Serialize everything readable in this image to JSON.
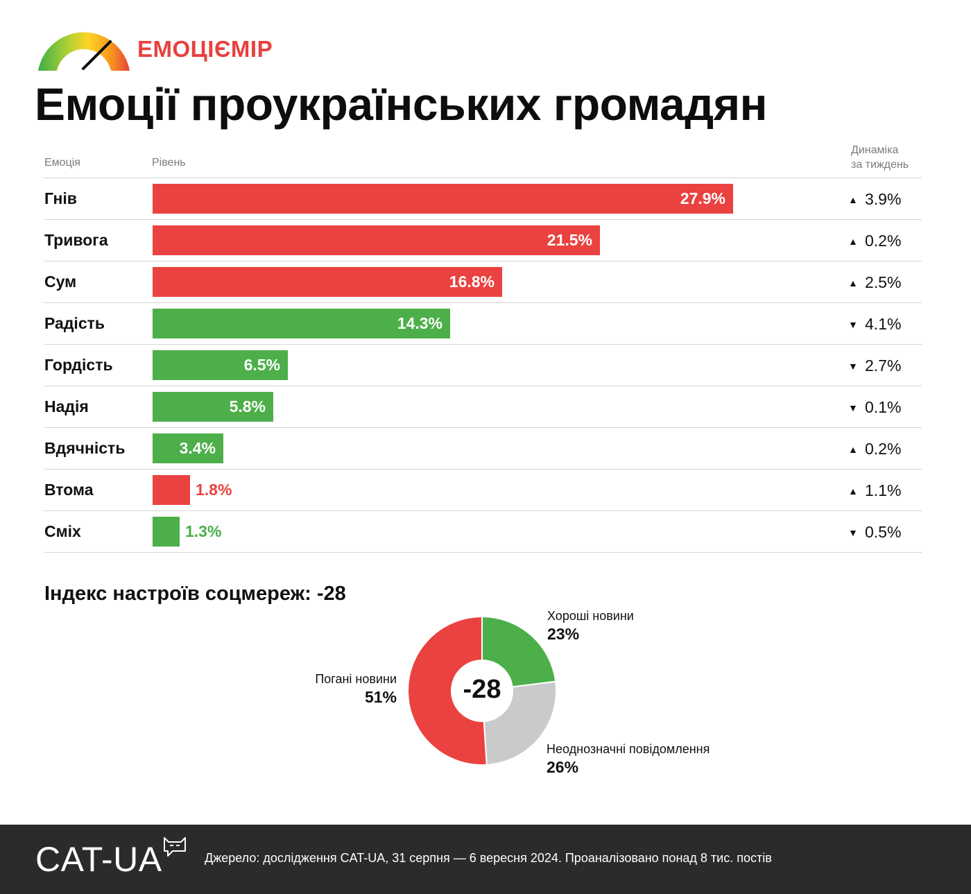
{
  "brand": "ЕМОЦІЄМІР",
  "title": "Емоції проукраїнських громадян",
  "headers": {
    "emotion": "Емоція",
    "level": "Рівень",
    "dynamics_line1": "Динаміка",
    "dynamics_line2": "за тиждень"
  },
  "colors": {
    "negative": "#ea4240",
    "positive": "#4daf4a",
    "ambiguous": "#cacaca"
  },
  "chart_data": [
    {
      "type": "bar",
      "orientation": "horizontal",
      "rows": [
        {
          "label": "Гнів",
          "value": 27.9,
          "value_label": "27.9%",
          "sentiment": "negative",
          "change_dir": "up",
          "change_label": "3.9%"
        },
        {
          "label": "Тривога",
          "value": 21.5,
          "value_label": "21.5%",
          "sentiment": "negative",
          "change_dir": "up",
          "change_label": "0.2%"
        },
        {
          "label": "Сум",
          "value": 16.8,
          "value_label": "16.8%",
          "sentiment": "negative",
          "change_dir": "up",
          "change_label": "2.5%"
        },
        {
          "label": "Радість",
          "value": 14.3,
          "value_label": "14.3%",
          "sentiment": "positive",
          "change_dir": "down",
          "change_label": "4.1%"
        },
        {
          "label": "Гордість",
          "value": 6.5,
          "value_label": "6.5%",
          "sentiment": "positive",
          "change_dir": "down",
          "change_label": "2.7%"
        },
        {
          "label": "Надія",
          "value": 5.8,
          "value_label": "5.8%",
          "sentiment": "positive",
          "change_dir": "down",
          "change_label": "0.1%"
        },
        {
          "label": "Вдячність",
          "value": 3.4,
          "value_label": "3.4%",
          "sentiment": "positive",
          "change_dir": "up",
          "change_label": "0.2%"
        },
        {
          "label": "Втома",
          "value": 1.8,
          "value_label": "1.8%",
          "sentiment": "negative",
          "change_dir": "up",
          "change_label": "1.1%"
        },
        {
          "label": "Сміх",
          "value": 1.3,
          "value_label": "1.3%",
          "sentiment": "positive",
          "change_dir": "down",
          "change_label": "0.5%"
        }
      ],
      "xlim": [
        0,
        30
      ]
    },
    {
      "type": "pie",
      "title": "Індекс настроїв соцмереж: -28",
      "center_label": "-28",
      "slices": [
        {
          "label": "Хороші новини",
          "value": 23,
          "value_label": "23%",
          "color": "#4daf4a"
        },
        {
          "label": "Неоднозначні повідомлення",
          "value": 26,
          "value_label": "26%",
          "color": "#cacaca"
        },
        {
          "label": "Погані новини",
          "value": 51,
          "value_label": "51%",
          "color": "#ea4240"
        }
      ]
    }
  ],
  "footer": {
    "org": "CAT-UA",
    "source": "Джерело: дослідження CAT-UA, 31 серпня — 6 вересня 2024. Проаналізовано понад 8 тис. постів"
  }
}
